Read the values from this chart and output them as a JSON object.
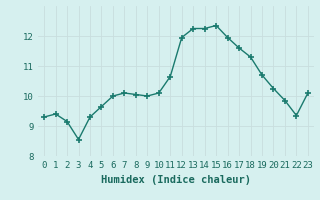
{
  "x": [
    0,
    1,
    2,
    3,
    4,
    5,
    6,
    7,
    8,
    9,
    10,
    11,
    12,
    13,
    14,
    15,
    16,
    17,
    18,
    19,
    20,
    21,
    22,
    23
  ],
  "y": [
    9.3,
    9.4,
    9.15,
    8.55,
    9.3,
    9.65,
    10.0,
    10.1,
    10.05,
    10.0,
    10.1,
    10.65,
    11.95,
    12.25,
    12.25,
    12.35,
    11.95,
    11.6,
    11.3,
    10.7,
    10.25,
    9.85,
    9.35,
    10.1
  ],
  "line_color": "#1a7a6e",
  "marker": "+",
  "marker_size": 4,
  "marker_lw": 1.2,
  "bg_color": "#d6f0ef",
  "grid_color": "#c8dede",
  "xlabel": "Humidex (Indice chaleur)",
  "ylim": [
    8,
    13
  ],
  "yticks": [
    8,
    9,
    10,
    11,
    12
  ],
  "xlim": [
    -0.5,
    23.5
  ],
  "xlabel_color": "#1a6a5e",
  "xlabel_fontsize": 7.5,
  "tick_fontsize": 6.5,
  "linewidth": 1.0
}
